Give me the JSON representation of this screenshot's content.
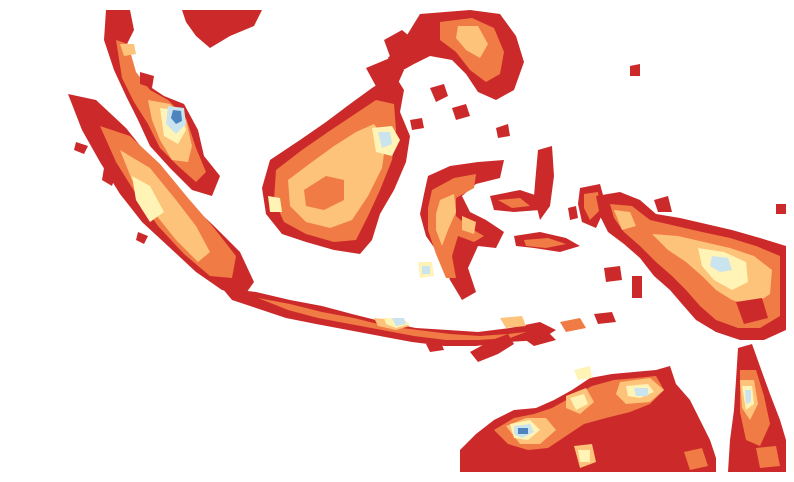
{
  "map": {
    "type": "filled-contour",
    "legend": null,
    "palette": {
      "c1": "#cc2a2a",
      "c2": "#f07b45",
      "c3": "#fdc37a",
      "c4": "#fff3b5",
      "c5": "#c9e3ef",
      "c6": "#4d84bd",
      "background": "#ffffff"
    },
    "regions": [
      {
        "name": "sumatra"
      },
      {
        "name": "peninsular-malaysia"
      },
      {
        "name": "borneo"
      },
      {
        "name": "sulawesi"
      },
      {
        "name": "java"
      },
      {
        "name": "lesser-sunda-islands"
      },
      {
        "name": "philippines"
      },
      {
        "name": "maluku"
      },
      {
        "name": "new-guinea"
      },
      {
        "name": "northern-australia"
      },
      {
        "name": "cape-york"
      }
    ]
  }
}
